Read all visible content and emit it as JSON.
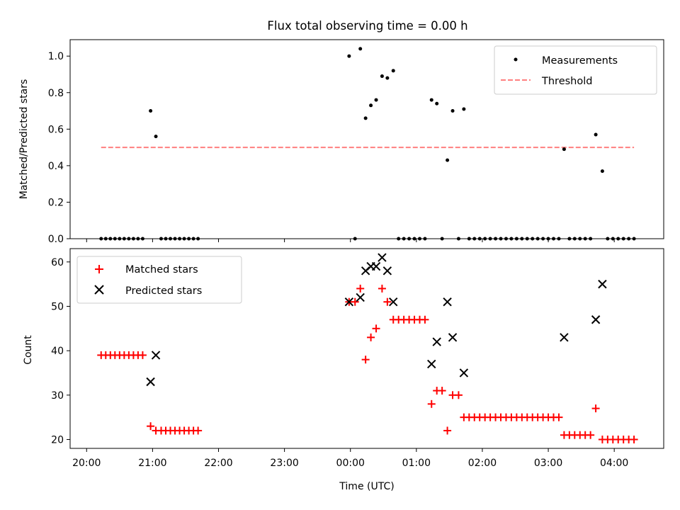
{
  "title": "Flux total observing time = 0.00 h",
  "chart_data": [
    {
      "type": "scatter",
      "ylabel": "Matched/Predicted stars",
      "xlabel": "",
      "xlim": [
        -0.25,
        8.75
      ],
      "ylim": [
        0,
        1.09
      ],
      "yticks": [
        "0.0",
        "0.2",
        "0.4",
        "0.6",
        "0.8",
        "1.0"
      ],
      "ytick_values": [
        0,
        0.2,
        0.4,
        0.6,
        0.8,
        1.0
      ],
      "grid": false,
      "legend": {
        "position": "top-right",
        "entries": [
          "Measurements",
          "Threshold"
        ]
      },
      "series": [
        {
          "name": "Measurements",
          "color": "#000000",
          "marker": "dot",
          "points": [
            [
              0.22,
              0
            ],
            [
              0.29,
              0
            ],
            [
              0.36,
              0
            ],
            [
              0.43,
              0
            ],
            [
              0.5,
              0
            ],
            [
              0.57,
              0
            ],
            [
              0.64,
              0
            ],
            [
              0.71,
              0
            ],
            [
              0.78,
              0
            ],
            [
              0.85,
              0
            ],
            [
              0.97,
              0.7
            ],
            [
              1.05,
              0.56
            ],
            [
              1.13,
              0
            ],
            [
              1.2,
              0
            ],
            [
              1.27,
              0
            ],
            [
              1.34,
              0
            ],
            [
              1.41,
              0
            ],
            [
              1.48,
              0
            ],
            [
              1.55,
              0
            ],
            [
              1.62,
              0
            ],
            [
              1.69,
              0
            ],
            [
              3.98,
              1.0
            ],
            [
              4.07,
              0
            ],
            [
              4.15,
              1.04
            ],
            [
              4.23,
              0.66
            ],
            [
              4.31,
              0.73
            ],
            [
              4.39,
              0.76
            ],
            [
              4.48,
              0.89
            ],
            [
              4.56,
              0.88
            ],
            [
              4.65,
              0.92
            ],
            [
              4.73,
              0
            ],
            [
              4.81,
              0
            ],
            [
              4.89,
              0
            ],
            [
              4.97,
              0
            ],
            [
              5.05,
              0
            ],
            [
              5.13,
              0
            ],
            [
              5.23,
              0.76
            ],
            [
              5.31,
              0.74
            ],
            [
              5.39,
              0
            ],
            [
              5.47,
              0.43
            ],
            [
              5.55,
              0.7
            ],
            [
              5.64,
              0
            ],
            [
              5.72,
              0.71
            ],
            [
              5.8,
              0
            ],
            [
              5.88,
              0
            ],
            [
              5.96,
              0
            ],
            [
              6.04,
              0
            ],
            [
              6.12,
              0
            ],
            [
              6.2,
              0
            ],
            [
              6.28,
              0
            ],
            [
              6.36,
              0
            ],
            [
              6.44,
              0
            ],
            [
              6.52,
              0
            ],
            [
              6.6,
              0
            ],
            [
              6.68,
              0
            ],
            [
              6.76,
              0
            ],
            [
              6.84,
              0
            ],
            [
              6.92,
              0
            ],
            [
              7.0,
              0
            ],
            [
              7.08,
              0
            ],
            [
              7.16,
              0
            ],
            [
              7.24,
              0.49
            ],
            [
              7.32,
              0
            ],
            [
              7.4,
              0
            ],
            [
              7.48,
              0
            ],
            [
              7.56,
              0
            ],
            [
              7.64,
              0
            ],
            [
              7.72,
              0.57
            ],
            [
              7.82,
              0.37
            ],
            [
              7.9,
              0
            ],
            [
              7.98,
              0
            ],
            [
              8.06,
              0
            ],
            [
              8.14,
              0
            ],
            [
              8.22,
              0
            ],
            [
              8.3,
              0
            ]
          ]
        },
        {
          "name": "Threshold",
          "color": "#ff7f7f",
          "style": "dashed",
          "points": [
            [
              0.22,
              0.5
            ],
            [
              8.3,
              0.5
            ]
          ]
        }
      ]
    },
    {
      "type": "scatter",
      "ylabel": "Count",
      "xlabel": "Time (UTC)",
      "xlim": [
        -0.25,
        8.75
      ],
      "ylim": [
        18,
        63
      ],
      "xticks": [
        "20:00",
        "21:00",
        "22:00",
        "23:00",
        "00:00",
        "01:00",
        "02:00",
        "03:00",
        "04:00"
      ],
      "xtick_values": [
        0,
        1,
        2,
        3,
        4,
        5,
        6,
        7,
        8
      ],
      "yticks": [
        "20",
        "30",
        "40",
        "50",
        "60"
      ],
      "ytick_values": [
        20,
        30,
        40,
        50,
        60
      ],
      "grid": false,
      "legend": {
        "position": "top-left",
        "entries": [
          "Matched stars",
          "Predicted stars"
        ]
      },
      "series": [
        {
          "name": "Matched stars",
          "color": "#ff0000",
          "marker": "plus",
          "points": [
            [
              0.22,
              39
            ],
            [
              0.29,
              39
            ],
            [
              0.36,
              39
            ],
            [
              0.43,
              39
            ],
            [
              0.5,
              39
            ],
            [
              0.57,
              39
            ],
            [
              0.64,
              39
            ],
            [
              0.71,
              39
            ],
            [
              0.78,
              39
            ],
            [
              0.85,
              39
            ],
            [
              0.97,
              23
            ],
            [
              1.05,
              22
            ],
            [
              1.13,
              22
            ],
            [
              1.2,
              22
            ],
            [
              1.27,
              22
            ],
            [
              1.34,
              22
            ],
            [
              1.41,
              22
            ],
            [
              1.48,
              22
            ],
            [
              1.55,
              22
            ],
            [
              1.62,
              22
            ],
            [
              1.69,
              22
            ],
            [
              3.98,
              51
            ],
            [
              4.07,
              51
            ],
            [
              4.15,
              54
            ],
            [
              4.23,
              38
            ],
            [
              4.31,
              43
            ],
            [
              4.39,
              45
            ],
            [
              4.48,
              54
            ],
            [
              4.56,
              51
            ],
            [
              4.65,
              47
            ],
            [
              4.73,
              47
            ],
            [
              4.81,
              47
            ],
            [
              4.89,
              47
            ],
            [
              4.97,
              47
            ],
            [
              5.05,
              47
            ],
            [
              5.13,
              47
            ],
            [
              5.23,
              28
            ],
            [
              5.31,
              31
            ],
            [
              5.39,
              31
            ],
            [
              5.47,
              22
            ],
            [
              5.55,
              30
            ],
            [
              5.64,
              30
            ],
            [
              5.72,
              25
            ],
            [
              5.8,
              25
            ],
            [
              5.88,
              25
            ],
            [
              5.96,
              25
            ],
            [
              6.04,
              25
            ],
            [
              6.12,
              25
            ],
            [
              6.2,
              25
            ],
            [
              6.28,
              25
            ],
            [
              6.36,
              25
            ],
            [
              6.44,
              25
            ],
            [
              6.52,
              25
            ],
            [
              6.6,
              25
            ],
            [
              6.68,
              25
            ],
            [
              6.76,
              25
            ],
            [
              6.84,
              25
            ],
            [
              6.92,
              25
            ],
            [
              7.0,
              25
            ],
            [
              7.08,
              25
            ],
            [
              7.16,
              25
            ],
            [
              7.24,
              21
            ],
            [
              7.32,
              21
            ],
            [
              7.4,
              21
            ],
            [
              7.48,
              21
            ],
            [
              7.56,
              21
            ],
            [
              7.64,
              21
            ],
            [
              7.72,
              27
            ],
            [
              7.82,
              20
            ],
            [
              7.9,
              20
            ],
            [
              7.98,
              20
            ],
            [
              8.06,
              20
            ],
            [
              8.14,
              20
            ],
            [
              8.22,
              20
            ],
            [
              8.3,
              20
            ]
          ]
        },
        {
          "name": "Predicted stars",
          "color": "#000000",
          "marker": "x",
          "points": [
            [
              0.97,
              33
            ],
            [
              1.05,
              39
            ],
            [
              3.98,
              51
            ],
            [
              4.15,
              52
            ],
            [
              4.23,
              58
            ],
            [
              4.31,
              59
            ],
            [
              4.39,
              59
            ],
            [
              4.48,
              61
            ],
            [
              4.56,
              58
            ],
            [
              4.65,
              51
            ],
            [
              5.23,
              37
            ],
            [
              5.31,
              42
            ],
            [
              5.47,
              51
            ],
            [
              5.55,
              43
            ],
            [
              5.72,
              35
            ],
            [
              7.24,
              43
            ],
            [
              7.72,
              47
            ],
            [
              7.82,
              55
            ]
          ]
        }
      ]
    }
  ]
}
